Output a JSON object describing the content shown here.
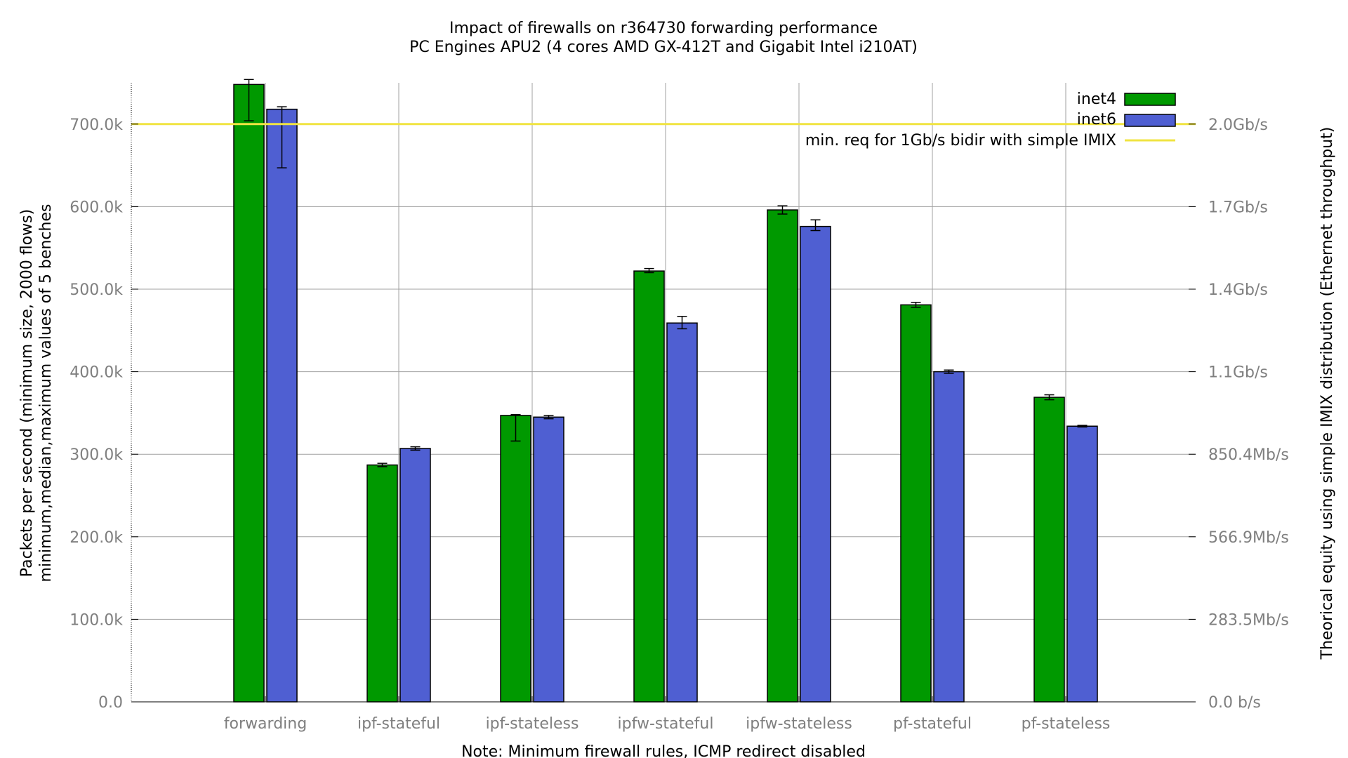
{
  "chart_data": {
    "type": "bar",
    "title": "Impact of firewalls on r364730 forwarding performance",
    "subtitle": "PC Engines APU2 (4 cores AMD GX-412T and Gigabit Intel i210AT)",
    "xlabel": "Note: Minimum firewall rules, ICMP redirect disabled",
    "ylabel": "Packets per second (minimum size, 2000 flows)",
    "ylabel2": "minimum,median,maximum values of 5 benches",
    "y2label": "Theorical equity using simple IMIX distribution (Ethernet throughput)",
    "categories": [
      "forwarding",
      "ipf-stateful",
      "ipf-stateless",
      "ipfw-stateful",
      "ipfw-stateless",
      "pf-stateful",
      "pf-stateless"
    ],
    "series": [
      {
        "name": "inet4",
        "color": "#009900",
        "values": [
          748000,
          287000,
          347000,
          522000,
          596000,
          481000,
          369000
        ],
        "min": [
          704000,
          285000,
          316000,
          520000,
          591000,
          478000,
          366000
        ],
        "max": [
          754000,
          289000,
          348000,
          525000,
          601000,
          484000,
          372000
        ]
      },
      {
        "name": "inet6",
        "color": "#4f5fd2",
        "values": [
          718000,
          307000,
          345000,
          459000,
          576000,
          400000,
          334000
        ],
        "min": [
          647000,
          305000,
          343000,
          452000,
          571000,
          398000,
          333000
        ],
        "max": [
          721000,
          309000,
          347000,
          467000,
          584000,
          402000,
          335000
        ]
      }
    ],
    "reference_line": {
      "name": "min. req for 1Gb/s bidir with simple IMIX",
      "value": 700000,
      "color": "#f0e442"
    },
    "ylim": [
      0,
      750000
    ],
    "yticks": [
      {
        "value": 0,
        "label": "0.0"
      },
      {
        "value": 100000,
        "label": "100.0k"
      },
      {
        "value": 200000,
        "label": "200.0k"
      },
      {
        "value": 300000,
        "label": "300.0k"
      },
      {
        "value": 400000,
        "label": "400.0k"
      },
      {
        "value": 500000,
        "label": "500.0k"
      },
      {
        "value": 600000,
        "label": "600.0k"
      },
      {
        "value": 700000,
        "label": "700.0k"
      }
    ],
    "y2ticks": [
      {
        "value": 0,
        "label": "0.0 b/s"
      },
      {
        "value": 100000,
        "label": "283.5Mb/s"
      },
      {
        "value": 200000,
        "label": "566.9Mb/s"
      },
      {
        "value": 300000,
        "label": "850.4Mb/s"
      },
      {
        "value": 400000,
        "label": "1.1Gb/s"
      },
      {
        "value": 500000,
        "label": "1.4Gb/s"
      },
      {
        "value": 600000,
        "label": "1.7Gb/s"
      },
      {
        "value": 700000,
        "label": "2.0Gb/s"
      }
    ],
    "grid": true,
    "legend": "top-right"
  }
}
